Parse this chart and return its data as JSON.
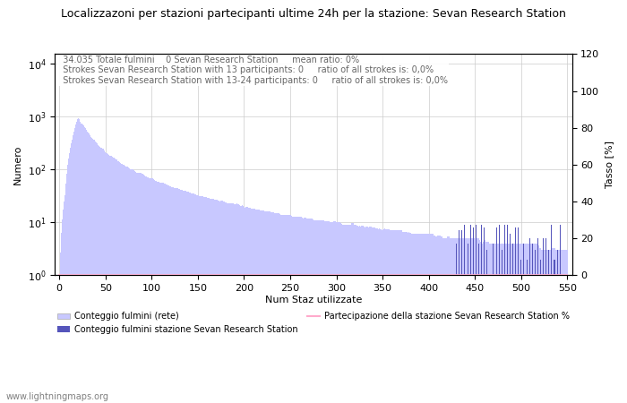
{
  "title": "Localizzazoni per stazioni partecipanti ultime 24h per la stazione: Sevan Research Station",
  "subtitle_line1": "  34.035 Totale fulmini    0 Sevan Research Station     mean ratio: 0%",
  "subtitle_line2": "  Strokes Sevan Research Station with 13 participants: 0     ratio of all strokes is: 0,0%",
  "subtitle_line3": "  Strokes Sevan Research Station with 13-24 participants: 0     ratio of all strokes is: 0,0%",
  "xlabel": "Num Staz utilizzate",
  "ylabel_left": "Numero",
  "ylabel_right": "Tasso [%]",
  "xlim": [
    -5,
    555
  ],
  "ylim_left": [
    1,
    15000
  ],
  "ylim_right": [
    0,
    120
  ],
  "yticks_right": [
    0,
    20,
    40,
    60,
    80,
    100,
    120
  ],
  "xticks": [
    0,
    50,
    100,
    150,
    200,
    250,
    300,
    350,
    400,
    450,
    500,
    550
  ],
  "bar_color_light": "#c8c8ff",
  "bar_color_dark": "#5555bb",
  "line_color": "#ffaacc",
  "background_color": "#ffffff",
  "grid_color": "#cccccc",
  "footer": "www.lightningmaps.org",
  "legend_labels": [
    "Conteggio fulmini (rete)",
    "Conteggio fulmini stazione Sevan Research Station",
    "Partecipazione della stazione Sevan Research Station %"
  ],
  "title_fontsize": 9,
  "subtitle_fontsize": 7,
  "axis_fontsize": 8,
  "tick_fontsize": 8
}
